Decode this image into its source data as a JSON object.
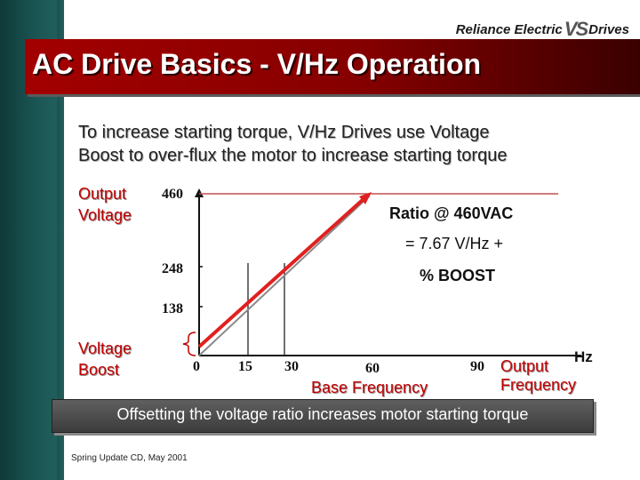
{
  "header": {
    "brand_left": "Reliance Electric",
    "brand_mark": "VS",
    "brand_right": "Drives",
    "title": "AC Drive Basics - V/Hz Operation"
  },
  "intro": {
    "line1": "To increase starting torque, V/Hz Drives use Voltage",
    "line2": "Boost to over-flux the motor to increase starting torque"
  },
  "labels": {
    "y_axis_line1": "Output",
    "y_axis_line2": "Voltage",
    "boost_line1": "Voltage",
    "boost_line2": "Boost",
    "ratio_line1": "Ratio @ 460VAC",
    "ratio_line2": "= 7.67 V/Hz +",
    "ratio_line3": "% BOOST",
    "hz": "Hz",
    "output_freq_line1": "Output",
    "output_freq_line2": "Frequency",
    "base_freq": "Base Frequency"
  },
  "chart_data": {
    "type": "line",
    "x_ticks": [
      "0",
      "15",
      "30",
      "60",
      "90"
    ],
    "y_ticks": [
      "460",
      "248",
      "138"
    ],
    "series": [
      {
        "x": [
          0,
          60
        ],
        "y": [
          0,
          460
        ]
      },
      {
        "x": [
          0,
          60
        ],
        "y": [
          30,
          460
        ]
      }
    ],
    "colors": {
      "boost_line": "#e02020",
      "base_line": "#8a8a8a",
      "axis": "#111111",
      "top_line": "#c05050"
    }
  },
  "footer": {
    "banner": "Offsetting the voltage ratio increases motor starting torque",
    "note": "Spring Update CD, May 2001"
  }
}
